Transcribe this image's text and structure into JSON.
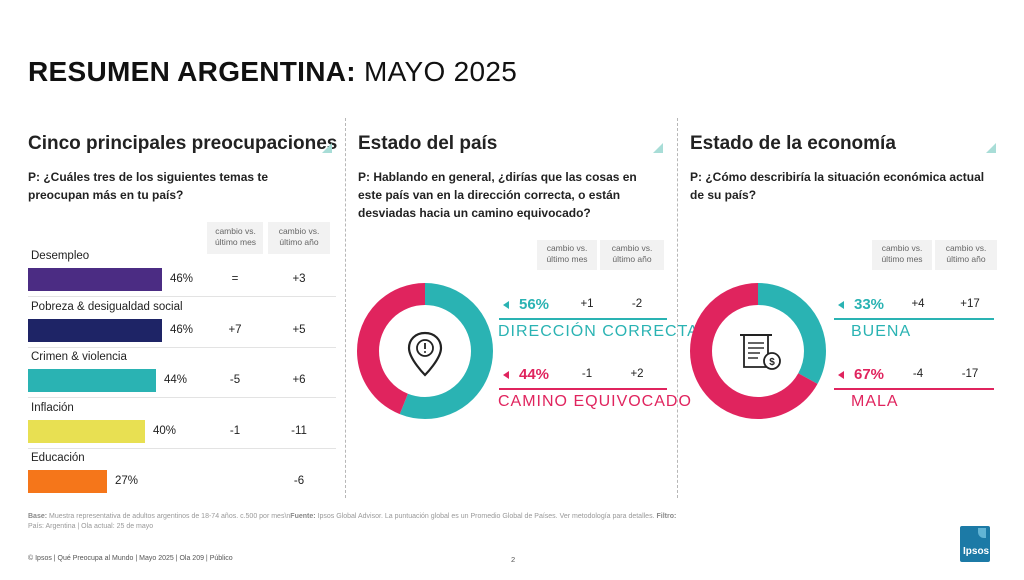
{
  "title": {
    "bold": "RESUMEN ARGENTINA:",
    "light": "MAYO 2025"
  },
  "colors": {
    "teal": "#2ab3b3",
    "pink": "#e0245e",
    "purple": "#4b2c83",
    "navy": "#1e2466",
    "yellow": "#e8e052",
    "orange": "#f5761a"
  },
  "concerns": {
    "title": "Cinco principales preocupaciones",
    "question": "P: ¿Cuáles tres de los siguientes temas te preocupan más en tu país?",
    "header_month": "cambio vs. último mes",
    "header_year": "cambio vs. último año",
    "rows": [
      {
        "label": "Desempleo",
        "pct": "46%",
        "value": 46,
        "month": "=",
        "year": "+3",
        "color": "#4b2c83"
      },
      {
        "label": "Pobreza & desigualdad social",
        "pct": "46%",
        "value": 46,
        "month": "+7",
        "year": "+5",
        "color": "#1e2466"
      },
      {
        "label": "Crimen & violencia",
        "pct": "44%",
        "value": 44,
        "month": "-5",
        "year": "+6",
        "color": "#2ab3b3"
      },
      {
        "label": "Inflación",
        "pct": "40%",
        "value": 40,
        "month": "-1",
        "year": "-11",
        "color": "#e8e052"
      },
      {
        "label": "Educación",
        "pct": "27%",
        "value": 27,
        "month": "",
        "year": "-6",
        "color": "#f5761a"
      }
    ]
  },
  "country": {
    "title": "Estado del país",
    "question": "P: Hablando en general, ¿dirías que las cosas en este país van en la dirección correcta, o están desviadas hacia un camino equivocado?",
    "header_month": "cambio vs. último mes",
    "header_year": "cambio vs. último año",
    "icon": "warning-pin-icon",
    "answers": [
      {
        "pct": "56%",
        "value": 56,
        "month": "+1",
        "year": "-2",
        "label": "DIRECCIÓN CORRECTA",
        "color": "#2ab3b3"
      },
      {
        "pct": "44%",
        "value": 44,
        "month": "-1",
        "year": "+2",
        "label": "CAMINO EQUIVOCADO",
        "color": "#e0245e"
      }
    ]
  },
  "economy": {
    "title": "Estado de la economía",
    "question": "P: ¿Cómo describiría la situación económica actual de su país?",
    "header_month": "cambio vs. último mes",
    "header_year": "cambio vs. último año",
    "icon": "invoice-dollar-icon",
    "answers": [
      {
        "pct": "33%",
        "value": 33,
        "month": "+4",
        "year": "+17",
        "label": "BUENA",
        "color": "#2ab3b3"
      },
      {
        "pct": "67%",
        "value": 67,
        "month": "-4",
        "year": "-17",
        "label": "MALA",
        "color": "#e0245e"
      }
    ]
  },
  "footnote": {
    "base_label": "Base:",
    "base_text": "Muestra representativa de adultos argentinos de 18-74 años. c.500 por mes\\n",
    "source_label": "Fuente:",
    "source_text": "Ipsos Global Advisor. La puntuación global es un Promedio Global de Países. Ver metodología para detalles.",
    "filter_label": "Filtro:",
    "filter_text": "País: Argentina | Ola actual: 25 de mayo"
  },
  "footer": "© Ipsos | Qué Preocupa al Mundo | Mayo 2025 | Ola 209 | Público",
  "page_number": "2",
  "logo_text": "Ipsos"
}
